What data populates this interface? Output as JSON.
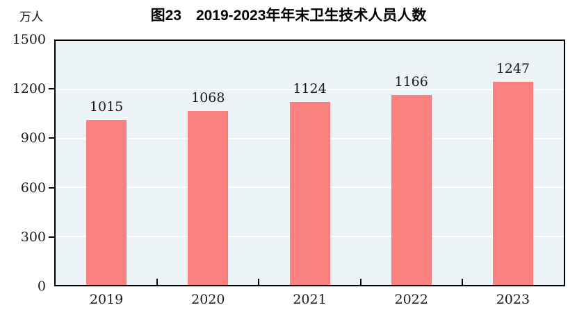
{
  "chart_data": {
    "type": "bar",
    "title": "图23　2019-2023年年末卫生技术人员人数",
    "unit_label": "万人",
    "categories": [
      "2019",
      "2020",
      "2021",
      "2022",
      "2023"
    ],
    "values": [
      1015,
      1068,
      1124,
      1166,
      1247
    ],
    "ylim": [
      0,
      1500
    ],
    "yticks": [
      0,
      300,
      600,
      900,
      1200,
      1500
    ],
    "ylabel": "万人",
    "xlabel": "",
    "legend_position": "none",
    "grid": "on",
    "bar_color": "#FB8080",
    "bar_edge_color": "#F17A7A",
    "plot_bg_color": "#ECF3F7",
    "grid_color": "#FFFFFF",
    "axis_color": "#000000",
    "text_color": "#1A1A1A"
  }
}
